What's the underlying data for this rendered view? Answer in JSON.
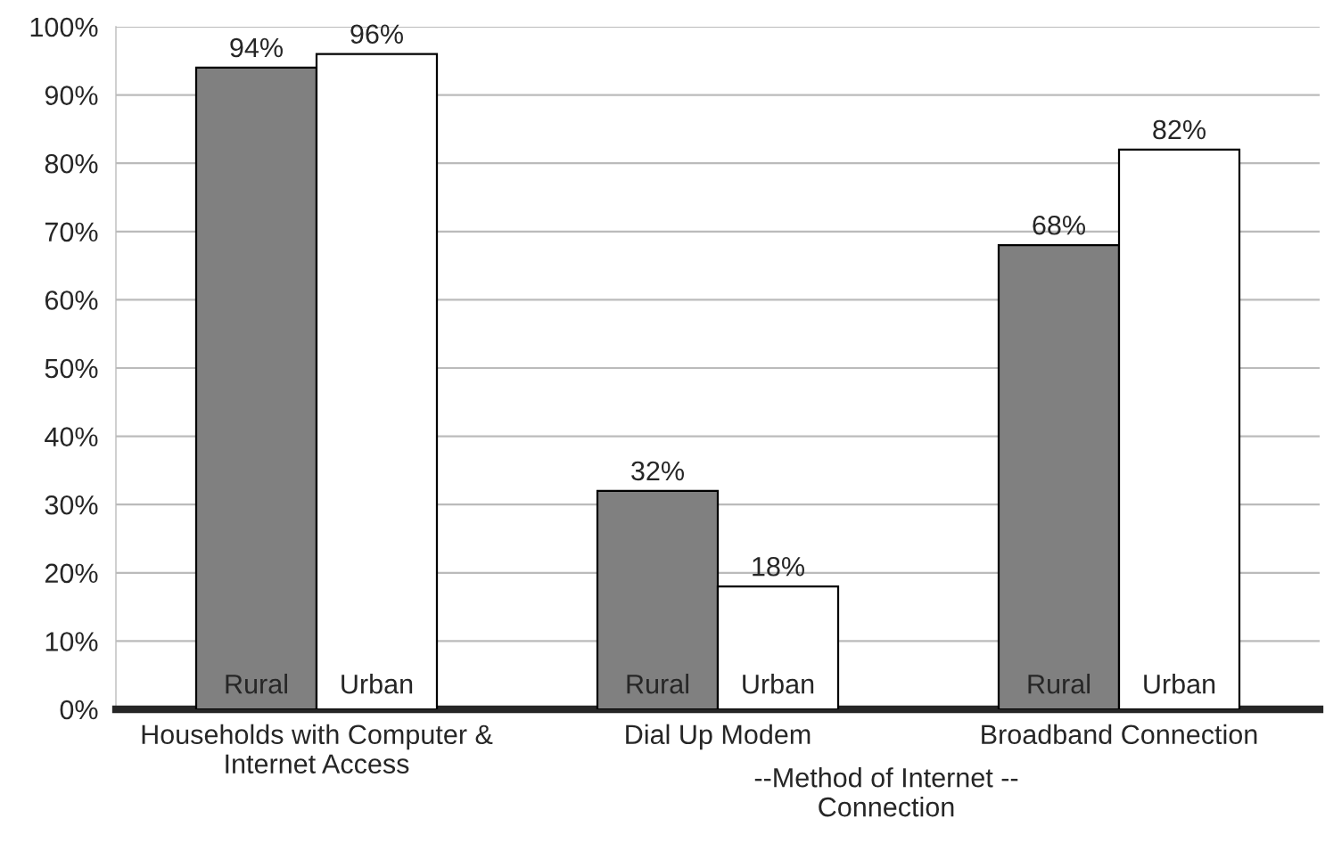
{
  "chart_data": {
    "type": "bar",
    "categories": [
      "Households with Computer &\nInternet Access",
      "Dial Up Modem",
      "Broadband Connection"
    ],
    "series": [
      {
        "name": "Rural",
        "color": "#808080",
        "values": [
          94,
          32,
          68
        ]
      },
      {
        "name": "Urban",
        "color": "#ffffff",
        "values": [
          96,
          18,
          82
        ]
      }
    ],
    "value_labels": [
      [
        "94%",
        "32%",
        "68%"
      ],
      [
        "96%",
        "18%",
        "82%"
      ]
    ],
    "xlabel": "--Method of Internet --\nConnection",
    "ylim": [
      0,
      100
    ],
    "yticks": [
      {
        "value": 0,
        "label": "0%"
      },
      {
        "value": 10,
        "label": "10%"
      },
      {
        "value": 20,
        "label": "20%"
      },
      {
        "value": 30,
        "label": "30%"
      },
      {
        "value": 40,
        "label": "40%"
      },
      {
        "value": 50,
        "label": "50%"
      },
      {
        "value": 60,
        "label": "60%"
      },
      {
        "value": 70,
        "label": "70%"
      },
      {
        "value": 80,
        "label": "80%"
      },
      {
        "value": 90,
        "label": "90%"
      },
      {
        "value": 100,
        "label": "100%"
      }
    ],
    "grid": "y",
    "legend": false
  }
}
